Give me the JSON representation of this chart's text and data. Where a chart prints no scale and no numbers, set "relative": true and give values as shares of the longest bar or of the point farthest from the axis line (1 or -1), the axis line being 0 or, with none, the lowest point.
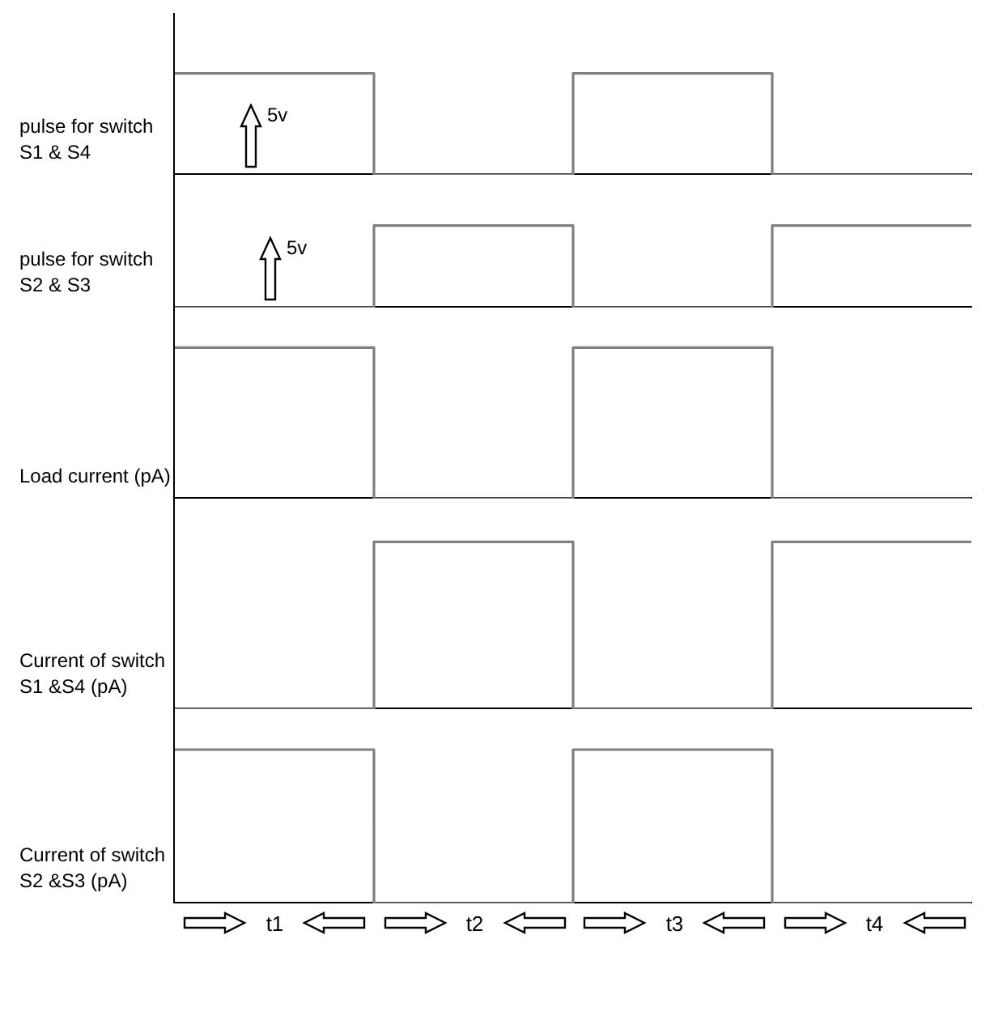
{
  "chart_data": [
    {
      "type": "step",
      "ylabel": "pulse for switch S1 & S4",
      "categories": [
        null,
        null,
        null,
        null,
        null
      ],
      "relative": true,
      "series": [
        {
          "color": "#808080",
          "values": [
            1,
            0,
            1,
            0,
            0
          ]
        }
      ],
      "annotations": [
        "5v"
      ],
      "tick_labels": false,
      "grid": false,
      "legend": false,
      "marker": "none"
    },
    {
      "type": "step",
      "ylabel": "pulse for switch S2 & S3",
      "categories": [
        null,
        null,
        null,
        null,
        null
      ],
      "relative": true,
      "series": [
        {
          "color": "#808080",
          "values": [
            0,
            1,
            0,
            1,
            1
          ]
        }
      ],
      "annotations": [
        "5v"
      ],
      "tick_labels": false,
      "grid": false,
      "legend": false,
      "marker": "none"
    },
    {
      "type": "step",
      "ylabel": "Load current (pA)",
      "categories": [
        null,
        null,
        null,
        null,
        null
      ],
      "relative": true,
      "series": [
        {
          "color": "#808080",
          "values": [
            1,
            0,
            1,
            0,
            0
          ]
        }
      ],
      "tick_labels": false,
      "grid": false,
      "legend": false,
      "marker": "none"
    },
    {
      "type": "step",
      "ylabel": "Current of switch S1 &S4 (pA)",
      "categories": [
        null,
        null,
        null,
        null,
        null
      ],
      "relative": true,
      "series": [
        {
          "color": "#808080",
          "values": [
            0,
            1,
            0,
            1,
            1
          ]
        }
      ],
      "tick_labels": false,
      "grid": false,
      "legend": false,
      "marker": "none"
    },
    {
      "type": "step",
      "ylabel": "Current of switch S2 &S3 (pA)",
      "categories": [
        null,
        null,
        null,
        null,
        null
      ],
      "relative": true,
      "series": [
        {
          "color": "#808080",
          "values": [
            1,
            0,
            1,
            0,
            0
          ]
        }
      ],
      "annotations": [
        "t1",
        "t2",
        "t3",
        "t4"
      ],
      "tick_labels": false,
      "grid": false,
      "legend": false,
      "marker": "none"
    }
  ]
}
